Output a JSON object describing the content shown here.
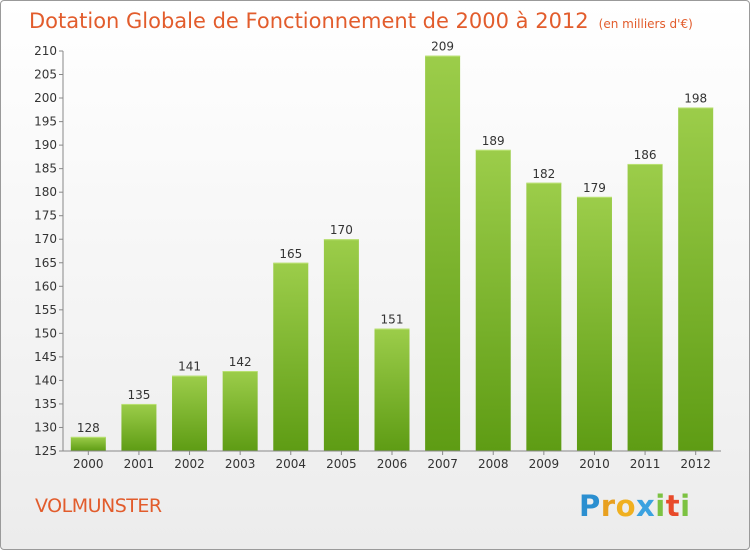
{
  "header": {
    "title": "Dotation Globale de Fonctionnement de 2000 à 2012",
    "unit": "(en milliers d'€)"
  },
  "footer": {
    "commune": "VOLMUNSTER",
    "logo": "Proxiti"
  },
  "colors": {
    "accent": "#e25c2c",
    "bar_light": "#9ccd4a",
    "bar_dark": "#5e9c14"
  },
  "chart_data": {
    "type": "bar",
    "title": "Dotation Globale de Fonctionnement de 2000 à 2012",
    "subtitle": "(en milliers d'€)",
    "xlabel": "",
    "ylabel": "",
    "categories": [
      "2000",
      "2001",
      "2002",
      "2003",
      "2004",
      "2005",
      "2006",
      "2007",
      "2008",
      "2009",
      "2010",
      "2011",
      "2012"
    ],
    "values": [
      128,
      135,
      141,
      142,
      165,
      170,
      151,
      209,
      189,
      182,
      179,
      186,
      198
    ],
    "ylim": [
      125,
      210
    ],
    "yticks": [
      125,
      130,
      135,
      140,
      145,
      150,
      155,
      160,
      165,
      170,
      175,
      180,
      185,
      190,
      195,
      200,
      205,
      210
    ],
    "grid": false,
    "legend": "none"
  }
}
